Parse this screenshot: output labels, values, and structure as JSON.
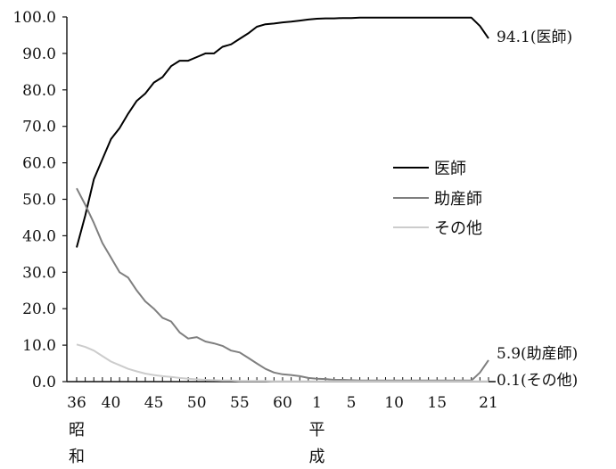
{
  "chart_data": {
    "type": "line",
    "title": "",
    "xlabel": "",
    "ylabel": "",
    "ylim": [
      0,
      100
    ],
    "yticks": [
      "0.0",
      "10.0",
      "20.0",
      "30.0",
      "40.0",
      "50.0",
      "60.0",
      "70.0",
      "80.0",
      "90.0",
      "100.0"
    ],
    "x": [
      "S36",
      "S37",
      "S38",
      "S39",
      "S40",
      "S41",
      "S42",
      "S43",
      "S44",
      "S45",
      "S46",
      "S47",
      "S48",
      "S49",
      "S50",
      "S51",
      "S52",
      "S53",
      "S54",
      "S55",
      "S56",
      "S57",
      "S58",
      "S59",
      "S60",
      "S61",
      "S62",
      "S63",
      "H1",
      "H2",
      "H3",
      "H4",
      "H5",
      "H6",
      "H7",
      "H8",
      "H9",
      "H10",
      "H11",
      "H12",
      "H13",
      "H14",
      "H15",
      "H16",
      "H17",
      "H18",
      "H19",
      "H20",
      "H21"
    ],
    "xtick_labels": [
      {
        "index": 0,
        "text": "36"
      },
      {
        "index": 4,
        "text": "40"
      },
      {
        "index": 9,
        "text": "45"
      },
      {
        "index": 14,
        "text": "50"
      },
      {
        "index": 19,
        "text": "55"
      },
      {
        "index": 24,
        "text": "60"
      },
      {
        "index": 28,
        "text": "1"
      },
      {
        "index": 32,
        "text": "5"
      },
      {
        "index": 37,
        "text": "10"
      },
      {
        "index": 42,
        "text": "15"
      },
      {
        "index": 48,
        "text": "21"
      }
    ],
    "era_labels": [
      {
        "index": 0,
        "chars": [
          "昭",
          "和"
        ]
      },
      {
        "index": 28,
        "chars": [
          "平",
          "成"
        ]
      }
    ],
    "series": [
      {
        "name": "医師",
        "color": "#000000",
        "end_label": "94.1(医師)",
        "values": [
          36.8,
          45.5,
          55.5,
          61.0,
          66.5,
          69.5,
          73.5,
          77.0,
          79.0,
          82.0,
          83.5,
          86.5,
          88.0,
          88.0,
          89.0,
          90.0,
          90.0,
          91.8,
          92.5,
          94.0,
          95.5,
          97.3,
          98.0,
          98.2,
          98.5,
          98.7,
          99.0,
          99.3,
          99.5,
          99.6,
          99.6,
          99.7,
          99.7,
          99.8,
          99.8,
          99.8,
          99.8,
          99.8,
          99.8,
          99.8,
          99.8,
          99.8,
          99.8,
          99.8,
          99.8,
          99.8,
          99.8,
          97.5,
          94.1
        ]
      },
      {
        "name": "助産師",
        "color": "#7f7f7f",
        "end_label": "5.9(助産師)",
        "values": [
          53.0,
          48.5,
          43.5,
          38.0,
          34.0,
          30.0,
          28.5,
          25.0,
          22.0,
          20.0,
          17.5,
          16.5,
          13.5,
          11.8,
          12.2,
          11.0,
          10.5,
          9.8,
          8.5,
          8.0,
          6.5,
          5.0,
          3.5,
          2.5,
          2.0,
          1.8,
          1.5,
          1.0,
          0.8,
          0.7,
          0.5,
          0.5,
          0.4,
          0.3,
          0.3,
          0.3,
          0.3,
          0.3,
          0.3,
          0.3,
          0.3,
          0.3,
          0.3,
          0.3,
          0.3,
          0.3,
          0.3,
          2.5,
          5.9
        ]
      },
      {
        "name": "その他",
        "color": "#cccccc",
        "end_label": "0.1(その他)",
        "values": [
          10.2,
          9.5,
          8.5,
          7.0,
          5.5,
          4.5,
          3.5,
          2.8,
          2.2,
          1.8,
          1.5,
          1.3,
          1.0,
          0.8,
          0.6,
          0.5,
          0.4,
          0.3,
          0.3,
          0.2,
          0.2,
          0.2,
          0.2,
          0.1,
          0.1,
          0.1,
          0.1,
          0.1,
          0.1,
          0.1,
          0.1,
          0.1,
          0.1,
          0.1,
          0.1,
          0.1,
          0.1,
          0.1,
          0.1,
          0.1,
          0.1,
          0.1,
          0.1,
          0.1,
          0.1,
          0.1,
          0.1,
          0.1,
          0.1
        ]
      }
    ],
    "legend_position": "right-middle",
    "grid": false
  }
}
